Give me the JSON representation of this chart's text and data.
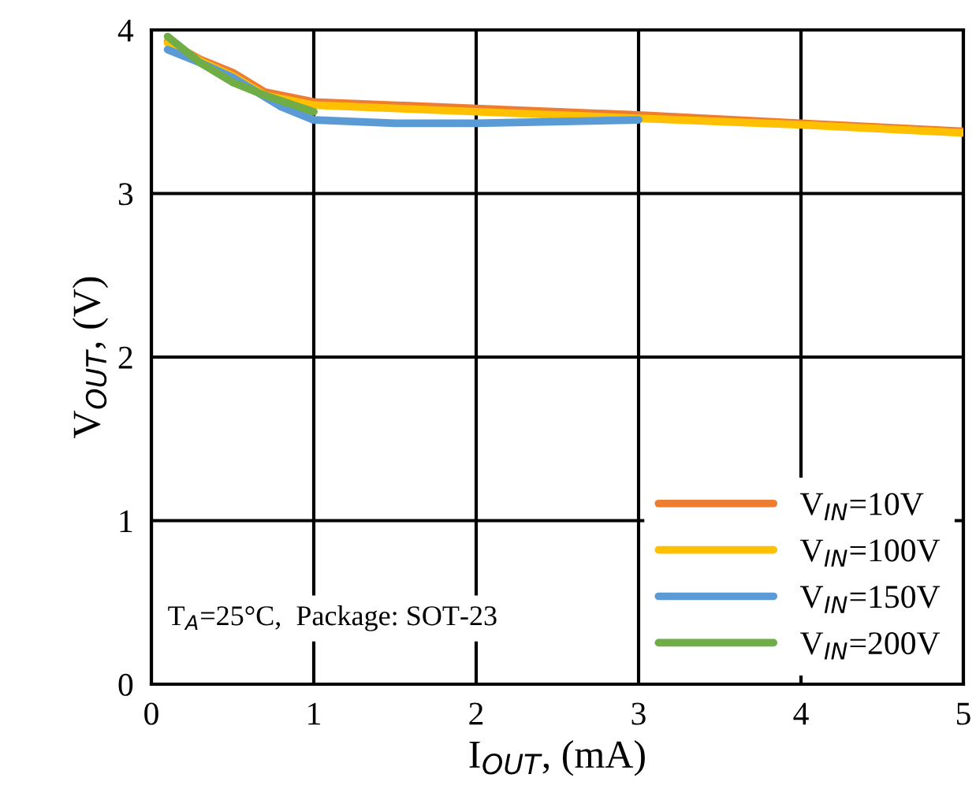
{
  "chart_data": {
    "type": "line",
    "xlabel": "I$_{OUT}$, (mA)",
    "ylabel": "V$_{OUT}$, (V)",
    "xlim": [
      0,
      5
    ],
    "ylim": [
      0,
      4
    ],
    "xticks": [
      0,
      1,
      2,
      3,
      4,
      5
    ],
    "yticks": [
      0,
      1,
      2,
      3,
      4
    ],
    "grid": true,
    "legend": "bottom right",
    "marker": "none",
    "line_style": "solid",
    "annotations": [
      "T$_{A}$=25°C,  Package: SOT-23"
    ],
    "series": [
      {
        "name": "V$_{IN}$=10V",
        "color": "#ed7d31",
        "x": [
          0.1,
          0.3,
          0.5,
          0.7,
          1,
          2,
          3,
          4,
          5
        ],
        "values": [
          3.93,
          3.82,
          3.74,
          3.62,
          3.56,
          3.52,
          3.48,
          3.43,
          3.38
        ]
      },
      {
        "name": "V$_{IN}$=100V",
        "color": "#ffc000",
        "x": [
          0.1,
          0.3,
          0.5,
          0.7,
          1,
          2,
          3,
          4,
          5
        ],
        "values": [
          3.92,
          3.81,
          3.72,
          3.6,
          3.54,
          3.5,
          3.46,
          3.42,
          3.37
        ]
      },
      {
        "name": "V$_{IN}$=150V",
        "color": "#5b9bd5",
        "x": [
          0.1,
          0.3,
          0.5,
          0.8,
          1,
          1.5,
          2,
          3
        ],
        "values": [
          3.88,
          3.8,
          3.71,
          3.53,
          3.45,
          3.43,
          3.43,
          3.45
        ]
      },
      {
        "name": "V$_{IN}$=200V",
        "color": "#70ad47",
        "x": [
          0.1,
          0.3,
          0.5,
          0.7,
          1
        ],
        "values": [
          3.96,
          3.8,
          3.68,
          3.6,
          3.5
        ]
      }
    ]
  }
}
